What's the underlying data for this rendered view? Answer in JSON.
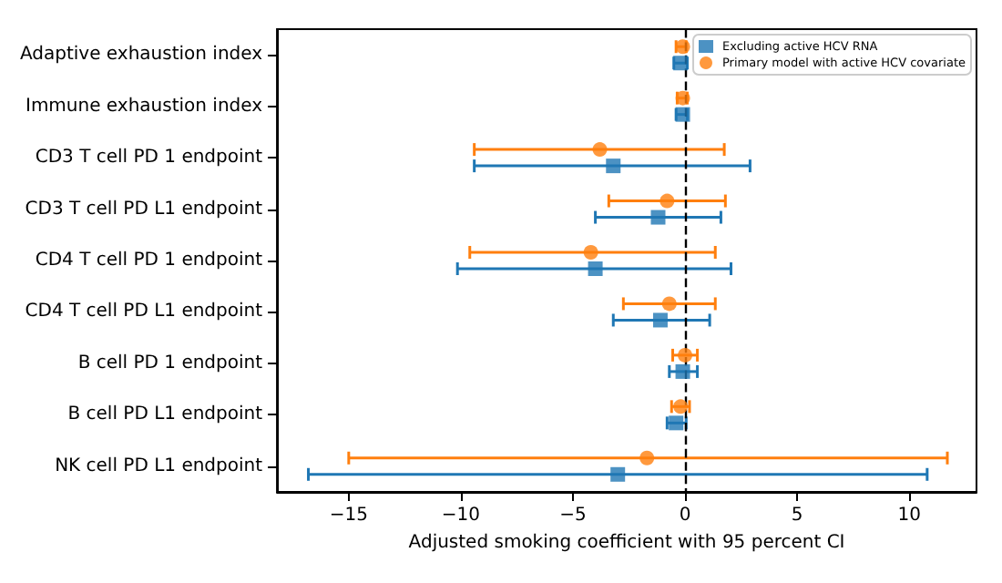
{
  "chart_data": {
    "type": "scatter",
    "orientation": "horizontal",
    "xlabel": "Adjusted smoking coefficient with 95 percent CI",
    "categories": [
      "Adaptive exhaustion index",
      "Immune exhaustion index",
      "CD3 T cell PD 1 endpoint",
      "CD3 T cell PD L1 endpoint",
      "CD4 T cell PD 1 endpoint",
      "CD4 T cell PD L1 endpoint",
      "B cell PD 1 endpoint",
      "B cell PD L1 endpoint",
      "NK cell PD L1 endpoint"
    ],
    "series": [
      {
        "name": "Excluding active HCV RNA",
        "color": "#1f77b4",
        "marker": "square",
        "values": [
          -0.2,
          -0.1,
          -3.2,
          -1.2,
          -4.0,
          -1.1,
          -0.1,
          -0.4,
          -3.0
        ],
        "errors": [
          [
            -0.5,
            0.1
          ],
          [
            -0.4,
            0.1
          ],
          [
            -9.4,
            2.9
          ],
          [
            -4.0,
            1.6
          ],
          [
            -10.15,
            2.05
          ],
          [
            -3.2,
            1.1
          ],
          [
            -0.7,
            0.55
          ],
          [
            -0.8,
            0.05
          ],
          [
            -16.8,
            10.8
          ]
        ]
      },
      {
        "name": "Primary model with active HCV covariate",
        "color": "#ff7f0e",
        "marker": "circle",
        "values": [
          -0.1,
          -0.1,
          -3.8,
          -0.8,
          -4.2,
          -0.7,
          0.0,
          -0.2,
          -1.7
        ],
        "errors": [
          [
            -0.4,
            0.05
          ],
          [
            -0.35,
            0.1
          ],
          [
            -9.4,
            1.75
          ],
          [
            -3.4,
            1.8
          ],
          [
            -9.6,
            1.35
          ],
          [
            -2.75,
            1.35
          ],
          [
            -0.55,
            0.55
          ],
          [
            -0.6,
            0.2
          ],
          [
            -15.0,
            11.7
          ]
        ]
      }
    ],
    "xlim": [
      -18.2,
      13
    ],
    "xticks": [
      -15,
      -10,
      -5,
      0,
      5,
      10
    ],
    "ref_lines": [
      {
        "axis": "x",
        "value": 0,
        "color": "#000000",
        "line_style": "dashed"
      }
    ],
    "grid": false,
    "legend": "top right"
  }
}
